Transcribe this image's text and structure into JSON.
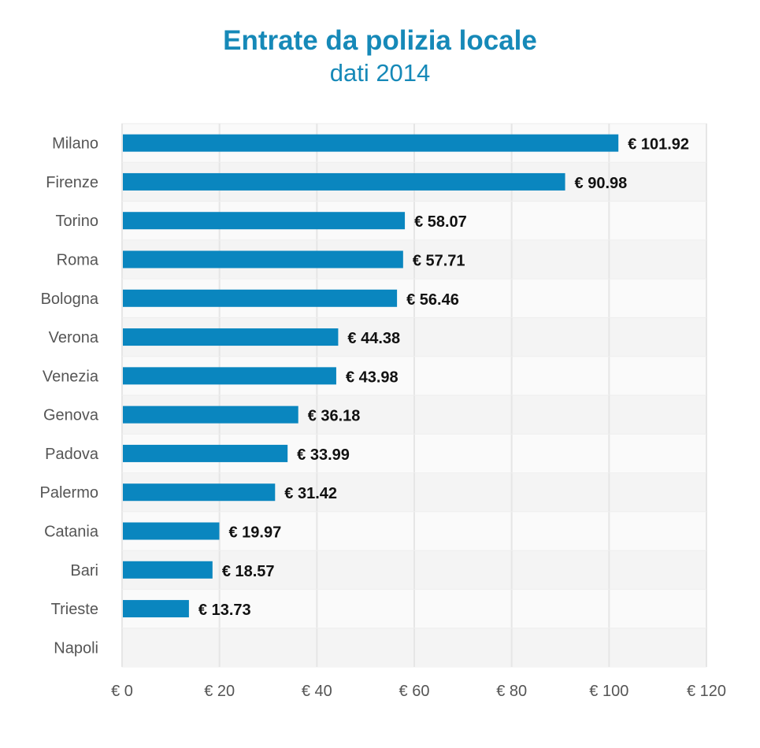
{
  "title": "Entrate da polizia locale",
  "subtitle": "dati 2014",
  "colors": {
    "bar": "#0a86bf",
    "title": "#1689b8"
  },
  "chart_data": {
    "type": "bar",
    "orientation": "horizontal",
    "title": "Entrate da polizia locale",
    "subtitle": "dati 2014",
    "categories": [
      "Milano",
      "Firenze",
      "Torino",
      "Roma",
      "Bologna",
      "Verona",
      "Venezia",
      "Genova",
      "Padova",
      "Palermo",
      "Catania",
      "Bari",
      "Trieste",
      "Napoli"
    ],
    "values": [
      101.92,
      90.98,
      58.07,
      57.71,
      56.46,
      44.38,
      43.98,
      36.18,
      33.99,
      31.42,
      19.97,
      18.57,
      13.73,
      null
    ],
    "data_labels": [
      "€ 101.92",
      "€ 90.98",
      "€ 58.07",
      "€ 57.71",
      "€ 56.46",
      "€ 44.38",
      "€ 43.98",
      "€ 36.18",
      "€ 33.99",
      "€ 31.42",
      "€ 19.97",
      "€ 18.57",
      "€ 13.73",
      ""
    ],
    "xlim": [
      0,
      120
    ],
    "xticks": [
      0,
      20,
      40,
      60,
      80,
      100,
      120
    ],
    "xtick_labels": [
      "€ 0",
      "€ 20",
      "€ 40",
      "€ 60",
      "€ 80",
      "€ 100",
      "€ 120"
    ],
    "grid": true,
    "legend": "none"
  }
}
